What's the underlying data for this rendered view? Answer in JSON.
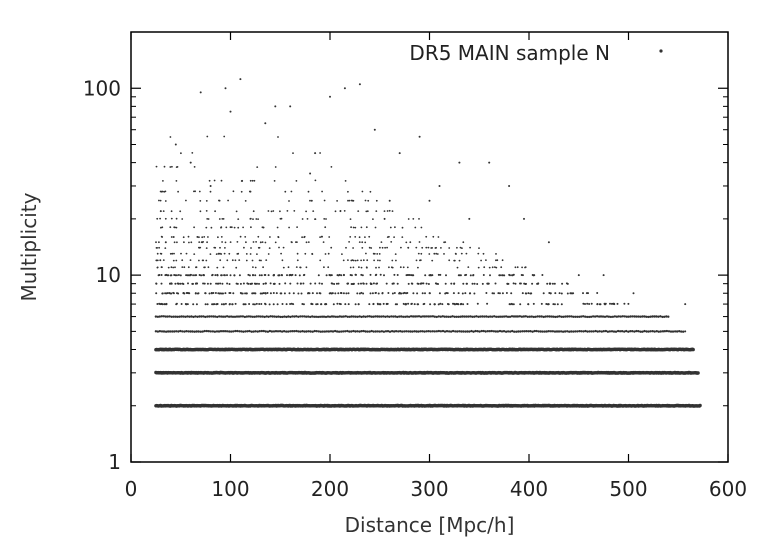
{
  "chart_data": {
    "type": "scatter",
    "title": "",
    "xlabel": "Distance [Mpc/h]",
    "ylabel": "Multiplicity",
    "x_scale": "linear",
    "y_scale": "log",
    "xlim": [
      0,
      600
    ],
    "ylim": [
      1,
      200
    ],
    "x_ticks": [
      0,
      100,
      200,
      300,
      400,
      500,
      600
    ],
    "y_ticks": [
      1,
      10,
      100
    ],
    "x_tick_labels": [
      "0",
      "100",
      "200",
      "300",
      "400",
      "500",
      "600"
    ],
    "y_tick_labels": [
      "1",
      "10",
      "100"
    ],
    "grid": false,
    "legend_position": "top-right",
    "marker_color": "#333333",
    "series": [
      {
        "name": "DR5 MAIN sample N",
        "x_range": [
          25,
          572
        ],
        "bands": [
          {
            "multiplicity": 2,
            "x_max": 572
          },
          {
            "multiplicity": 3,
            "x_max": 570
          },
          {
            "multiplicity": 4,
            "x_max": 565
          },
          {
            "multiplicity": 5,
            "x_max": 555
          },
          {
            "multiplicity": 6,
            "x_max": 540
          },
          {
            "multiplicity": 7,
            "x_max": 500
          },
          {
            "multiplicity": 8,
            "x_max": 470
          },
          {
            "multiplicity": 9,
            "x_max": 440
          },
          {
            "multiplicity": 10,
            "x_max": 415
          },
          {
            "multiplicity": 11,
            "x_max": 400
          },
          {
            "multiplicity": 12,
            "x_max": 385
          },
          {
            "multiplicity": 13,
            "x_max": 370
          },
          {
            "multiplicity": 14,
            "x_max": 350
          },
          {
            "multiplicity": 15,
            "x_max": 335
          },
          {
            "multiplicity": 16,
            "x_max": 320
          },
          {
            "multiplicity": 18,
            "x_max": 305
          },
          {
            "multiplicity": 20,
            "x_max": 290
          },
          {
            "multiplicity": 22,
            "x_max": 275
          },
          {
            "multiplicity": 25,
            "x_max": 260
          },
          {
            "multiplicity": 28,
            "x_max": 250
          },
          {
            "multiplicity": 32,
            "x_max": 240
          },
          {
            "multiplicity": 38,
            "x_max": 230
          },
          {
            "multiplicity": 45,
            "x_max": 225
          },
          {
            "multiplicity": 55,
            "x_max": 220
          }
        ],
        "outliers": [
          [
            70,
            95
          ],
          [
            95,
            100
          ],
          [
            110,
            112
          ],
          [
            100,
            75
          ],
          [
            215,
            100
          ],
          [
            230,
            105
          ],
          [
            200,
            90
          ],
          [
            160,
            80
          ],
          [
            145,
            80
          ],
          [
            135,
            65
          ],
          [
            245,
            60
          ],
          [
            290,
            55
          ],
          [
            330,
            40
          ],
          [
            360,
            40
          ],
          [
            380,
            30
          ],
          [
            395,
            20
          ],
          [
            420,
            15
          ],
          [
            450,
            10
          ],
          [
            475,
            10
          ],
          [
            505,
            8
          ],
          [
            535,
            5
          ],
          [
            557,
            7
          ],
          [
            557,
            5
          ],
          [
            30,
            22
          ],
          [
            35,
            15
          ],
          [
            45,
            50
          ],
          [
            60,
            40
          ],
          [
            80,
            30
          ],
          [
            120,
            28
          ],
          [
            180,
            35
          ],
          [
            185,
            45
          ],
          [
            260,
            25
          ],
          [
            270,
            45
          ],
          [
            310,
            30
          ],
          [
            340,
            20
          ],
          [
            300,
            25
          ]
        ]
      }
    ]
  }
}
